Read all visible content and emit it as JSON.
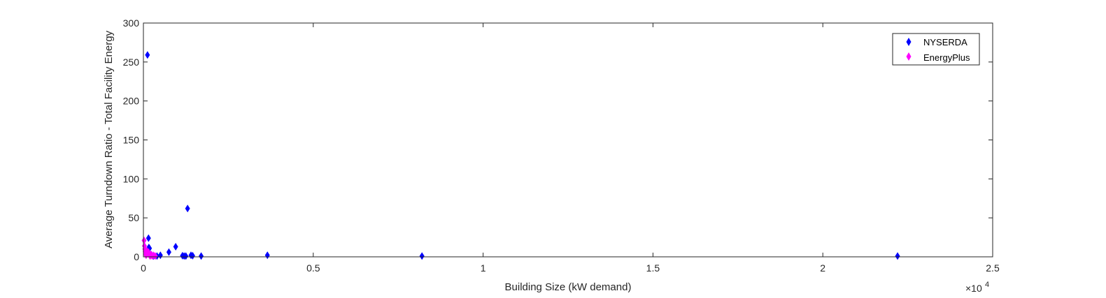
{
  "chart_data": {
    "type": "scatter",
    "title": "",
    "xlabel": "Building Size (kW demand)",
    "ylabel": "Average Turndown Ratio - Total Facility Energy",
    "xlim": [
      0,
      25000
    ],
    "ylim": [
      0,
      300
    ],
    "x_exponent_label": "×10",
    "x_exponent_power": "4",
    "x_ticks": [
      0,
      5000,
      10000,
      15000,
      20000,
      25000
    ],
    "x_tick_labels": [
      "0",
      "0.5",
      "1",
      "1.5",
      "2",
      "2.5"
    ],
    "y_ticks": [
      0,
      50,
      100,
      150,
      200,
      250,
      300
    ],
    "y_tick_labels": [
      "0",
      "50",
      "100",
      "150",
      "200",
      "250",
      "300"
    ],
    "grid": false,
    "legend_position": "top-right",
    "marker": "diamond",
    "series": [
      {
        "name": "NYSERDA",
        "color": "#0000ff",
        "points": [
          [
            120,
            259
          ],
          [
            150,
            24
          ],
          [
            160,
            12
          ],
          [
            180,
            11
          ],
          [
            200,
            3
          ],
          [
            250,
            2
          ],
          [
            300,
            1
          ],
          [
            400,
            1
          ],
          [
            500,
            2
          ],
          [
            750,
            6
          ],
          [
            950,
            13
          ],
          [
            1150,
            1.5
          ],
          [
            1200,
            1
          ],
          [
            1250,
            1
          ],
          [
            1300,
            62
          ],
          [
            1400,
            2
          ],
          [
            1450,
            1.5
          ],
          [
            1700,
            1
          ],
          [
            3650,
            2
          ],
          [
            8200,
            1
          ],
          [
            22200,
            1
          ]
        ]
      },
      {
        "name": "EnergyPlus",
        "color": "#ff00ff",
        "points": [
          [
            20,
            21
          ],
          [
            30,
            14
          ],
          [
            40,
            10
          ],
          [
            50,
            7
          ],
          [
            60,
            5
          ],
          [
            70,
            3
          ],
          [
            80,
            2
          ],
          [
            100,
            8
          ],
          [
            120,
            4
          ],
          [
            150,
            6
          ],
          [
            180,
            2
          ],
          [
            200,
            1
          ],
          [
            230,
            3
          ],
          [
            260,
            1
          ],
          [
            300,
            2
          ],
          [
            350,
            1
          ]
        ]
      }
    ]
  }
}
